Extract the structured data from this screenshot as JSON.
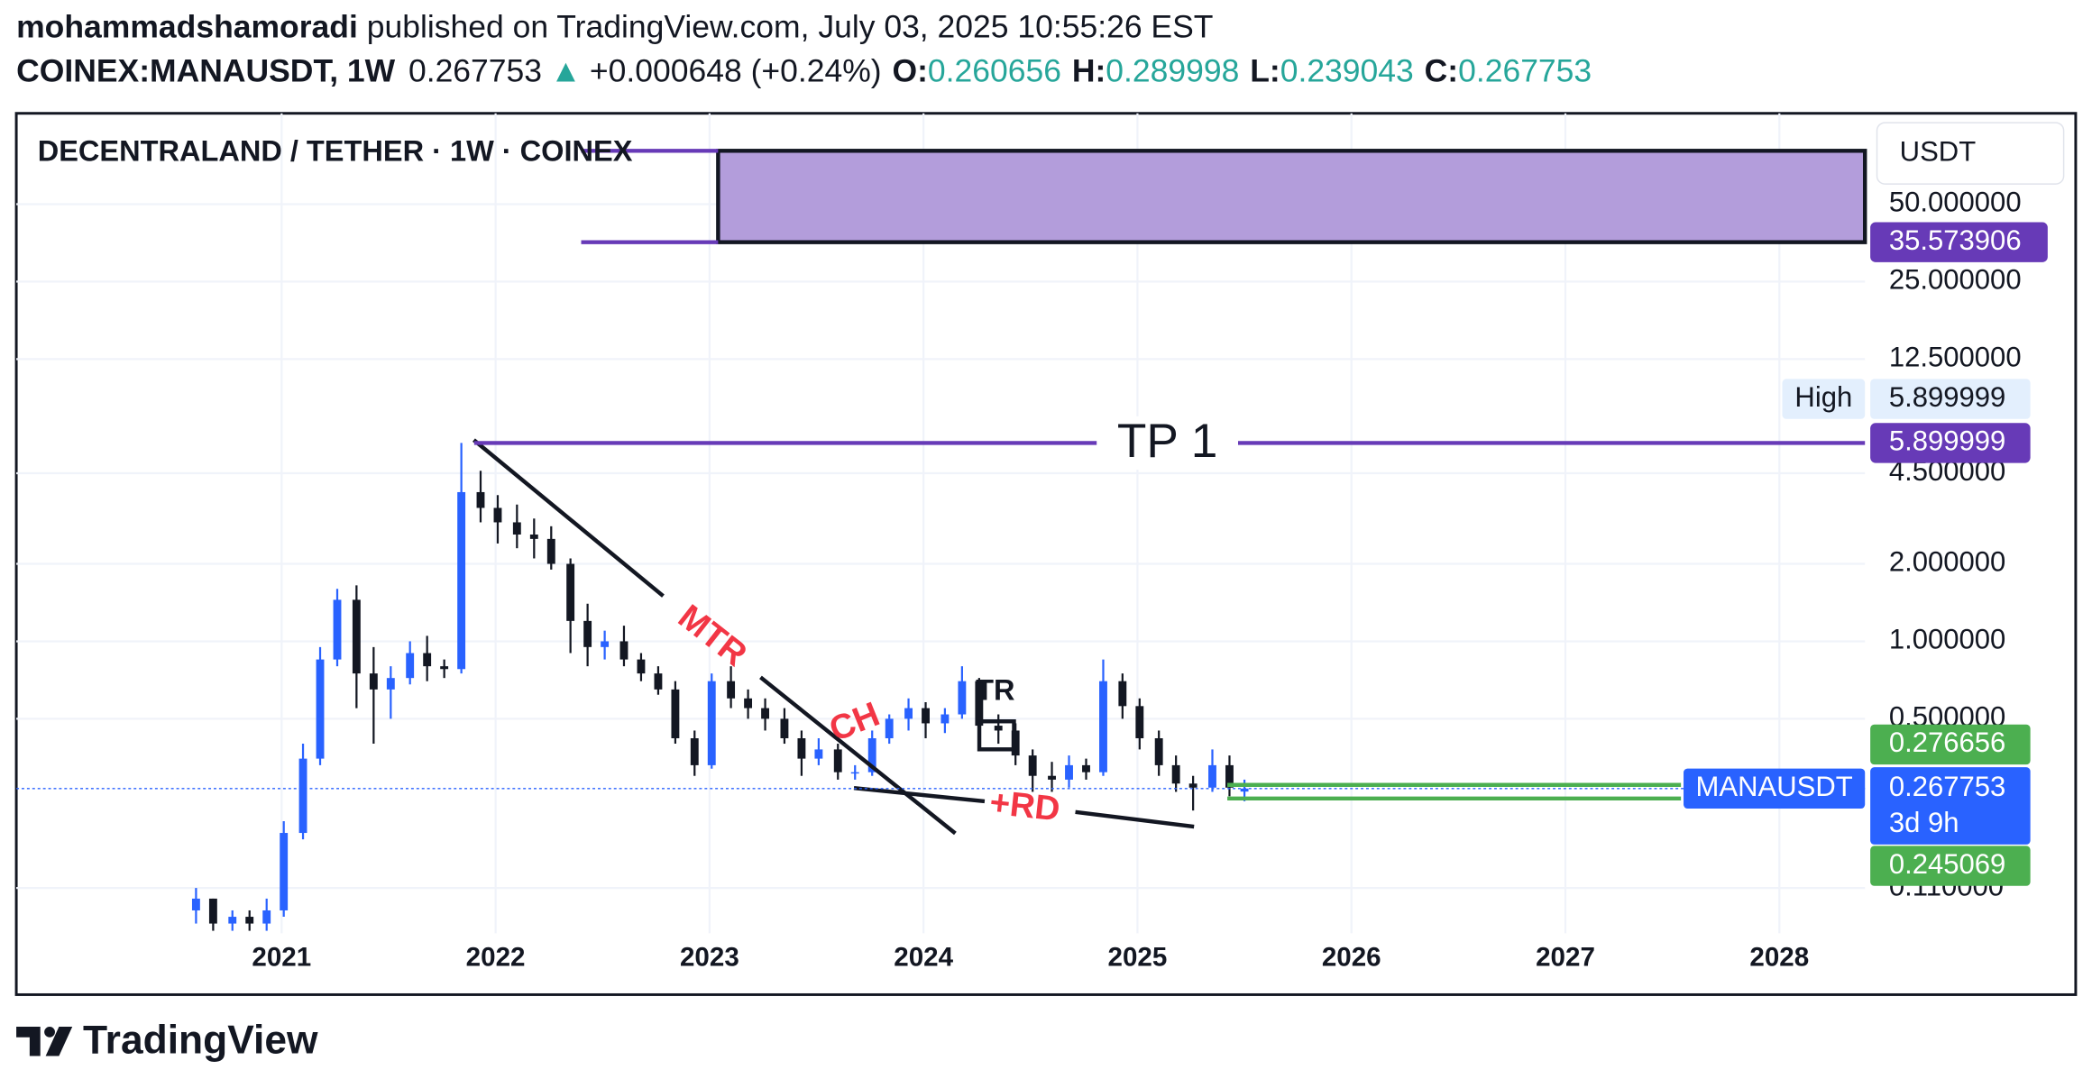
{
  "header": {
    "author": "mohammadshamoradi",
    "published": "published on TradingView.com, July 03, 2025 10:55:26 EST",
    "symbol": "COINEX:MANAUSDT, 1W",
    "change": "+0.000648 (+0.24%)",
    "o": "O:",
    "h": "H:",
    "l": "L:",
    "c": "C:"
  },
  "chart_data": {
    "type": "candlestick",
    "title": "DECENTRALAND / TETHER · 1W · COINEX",
    "currency": "USDT",
    "x": [
      2020.6,
      2020.68,
      2020.77,
      2020.85,
      2020.93,
      2021.01,
      2021.1,
      2021.18,
      2021.26,
      2021.35,
      2021.43,
      2021.51,
      2021.6,
      2021.68,
      2021.76,
      2021.84,
      2021.93,
      2022.01,
      2022.1,
      2022.18,
      2022.26,
      2022.35,
      2022.43,
      2022.51,
      2022.6,
      2022.68,
      2022.76,
      2022.84,
      2022.93,
      2023.01,
      2023.1,
      2023.18,
      2023.26,
      2023.35,
      2023.43,
      2023.51,
      2023.6,
      2023.68,
      2023.76,
      2023.84,
      2023.93,
      2024.01,
      2024.1,
      2024.18,
      2024.26,
      2024.35,
      2024.43,
      2024.51,
      2024.6,
      2024.68,
      2024.76,
      2024.84,
      2024.93,
      2025.01,
      2025.1,
      2025.18,
      2025.26,
      2025.35,
      2025.43,
      2025.5
    ],
    "series": [
      {
        "name": "MANAUSDT",
        "open": [
          0.09,
          0.1,
          0.08,
          0.085,
          0.08,
          0.09,
          0.18,
          0.35,
          0.85,
          1.45,
          0.75,
          0.65,
          0.72,
          0.9,
          0.8,
          0.78,
          3.8,
          3.3,
          2.9,
          2.6,
          2.5,
          2.0,
          1.2,
          0.95,
          1.0,
          0.85,
          0.75,
          0.65,
          0.42,
          0.33,
          0.7,
          0.6,
          0.55,
          0.5,
          0.42,
          0.35,
          0.38,
          0.31,
          0.31,
          0.42,
          0.5,
          0.55,
          0.48,
          0.52,
          0.7,
          0.47,
          0.45,
          0.36,
          0.3,
          0.29,
          0.33,
          0.31,
          0.7,
          0.56,
          0.42,
          0.33,
          0.28,
          0.27,
          0.33,
          0.260656
        ],
        "high": [
          0.11,
          0.1,
          0.09,
          0.09,
          0.1,
          0.2,
          0.4,
          0.95,
          1.6,
          1.65,
          0.95,
          0.8,
          1.0,
          1.05,
          0.85,
          5.899999,
          4.6,
          3.7,
          3.4,
          3.0,
          2.8,
          2.1,
          1.4,
          1.1,
          1.15,
          0.9,
          0.8,
          0.7,
          0.45,
          0.75,
          0.8,
          0.65,
          0.6,
          0.55,
          0.45,
          0.42,
          0.4,
          0.33,
          0.45,
          0.52,
          0.6,
          0.58,
          0.55,
          0.8,
          0.72,
          0.52,
          0.48,
          0.38,
          0.34,
          0.36,
          0.35,
          0.85,
          0.75,
          0.6,
          0.45,
          0.36,
          0.3,
          0.38,
          0.36,
          0.289998
        ],
        "low": [
          0.08,
          0.075,
          0.075,
          0.075,
          0.075,
          0.085,
          0.17,
          0.33,
          0.8,
          0.55,
          0.4,
          0.5,
          0.68,
          0.7,
          0.72,
          0.75,
          2.9,
          2.4,
          2.3,
          2.1,
          1.9,
          0.9,
          0.8,
          0.85,
          0.8,
          0.7,
          0.62,
          0.4,
          0.3,
          0.32,
          0.55,
          0.5,
          0.45,
          0.4,
          0.3,
          0.33,
          0.29,
          0.29,
          0.3,
          0.4,
          0.45,
          0.42,
          0.44,
          0.5,
          0.42,
          0.4,
          0.33,
          0.26,
          0.26,
          0.27,
          0.29,
          0.3,
          0.5,
          0.38,
          0.3,
          0.26,
          0.22,
          0.26,
          0.25,
          0.239043
        ],
        "close": [
          0.1,
          0.08,
          0.085,
          0.08,
          0.09,
          0.18,
          0.35,
          0.85,
          1.45,
          0.75,
          0.65,
          0.72,
          0.9,
          0.8,
          0.78,
          3.8,
          3.3,
          2.9,
          2.6,
          2.5,
          2.0,
          1.2,
          0.95,
          1.0,
          0.85,
          0.75,
          0.65,
          0.42,
          0.33,
          0.7,
          0.6,
          0.55,
          0.5,
          0.42,
          0.35,
          0.38,
          0.31,
          0.31,
          0.42,
          0.5,
          0.55,
          0.48,
          0.52,
          0.7,
          0.47,
          0.45,
          0.36,
          0.3,
          0.29,
          0.33,
          0.31,
          0.7,
          0.56,
          0.42,
          0.33,
          0.28,
          0.27,
          0.33,
          0.27,
          0.267753
        ]
      }
    ],
    "up_color": "#2962ff",
    "down_color": "#131722",
    "xlim": [
      2019.76,
      2028.4
    ],
    "xticks": [
      2021,
      2022,
      2023,
      2024,
      2025,
      2026,
      2027,
      2028
    ],
    "ylim": [
      0.0733,
      112.7
    ],
    "log_scale": true,
    "grid": true,
    "yticks": [
      {
        "value": 50,
        "label": "50.000000"
      },
      {
        "value": 25,
        "label": "25.000000"
      },
      {
        "value": 12.5,
        "label": "12.500000"
      },
      {
        "value": 4.5,
        "label": "4.500000"
      },
      {
        "value": 2,
        "label": "2.000000"
      },
      {
        "value": 1,
        "label": "1.000000"
      },
      {
        "value": 0.5,
        "label": "0.500000"
      },
      {
        "value": 0.11,
        "label": "0.110000"
      }
    ],
    "high_label": "High",
    "countdown": "3d 9h",
    "box": {
      "top": 80.6,
      "bottom": 35.573906,
      "x_start": 2023.04,
      "line_start": 2022.4,
      "color": "#b39ddb",
      "line_color": "#673ab7"
    },
    "target": {
      "label": "TP 1",
      "value": 5.899999,
      "x_start": 2021.9,
      "color": "#673ab7"
    },
    "zone": {
      "values": [
        0.276656,
        0.245069
      ],
      "x_start": 2025.42,
      "x_end": 2027.54,
      "color": "#4caf50"
    },
    "annotations": [
      "MTR",
      "CH",
      "+RD",
      "TR"
    ]
  },
  "footer": {
    "brand": "TradingView"
  }
}
